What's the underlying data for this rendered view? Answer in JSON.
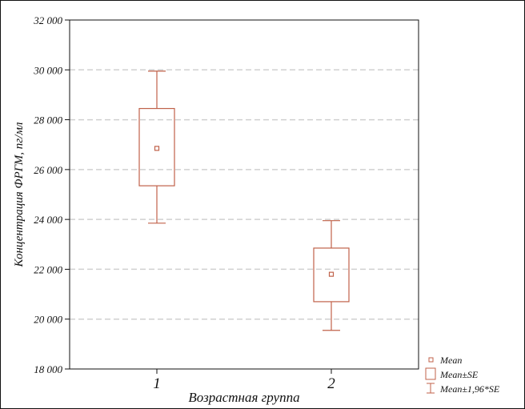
{
  "chart_data": {
    "type": "box",
    "xlabel": "Возрастная группа",
    "ylabel": "Концентрация ФРГМ, пг/мл",
    "ylim": [
      18000,
      32000
    ],
    "yticks": [
      18000,
      20000,
      22000,
      24000,
      26000,
      28000,
      30000,
      32000
    ],
    "ytick_labels": [
      "18 000",
      "20 000",
      "22 000",
      "24 000",
      "26 000",
      "28 000",
      "30 000",
      "32 000"
    ],
    "grid": "horizontal dashed",
    "legend_position": "bottom-right",
    "categories": [
      "1",
      "2"
    ],
    "series": [
      {
        "mean": [
          26850,
          21800
        ],
        "se_low": [
          25350,
          20700
        ],
        "se_high": [
          28450,
          22850
        ],
        "ci_low": [
          23850,
          19550
        ],
        "ci_high": [
          29950,
          23950
        ]
      }
    ],
    "legend": [
      "Mean",
      "Mean±SE",
      "Mean±1,96*SE"
    ],
    "colors": {
      "marks": "#c0624a",
      "grid": "#d0d0d0",
      "axis": "#111111"
    }
  }
}
